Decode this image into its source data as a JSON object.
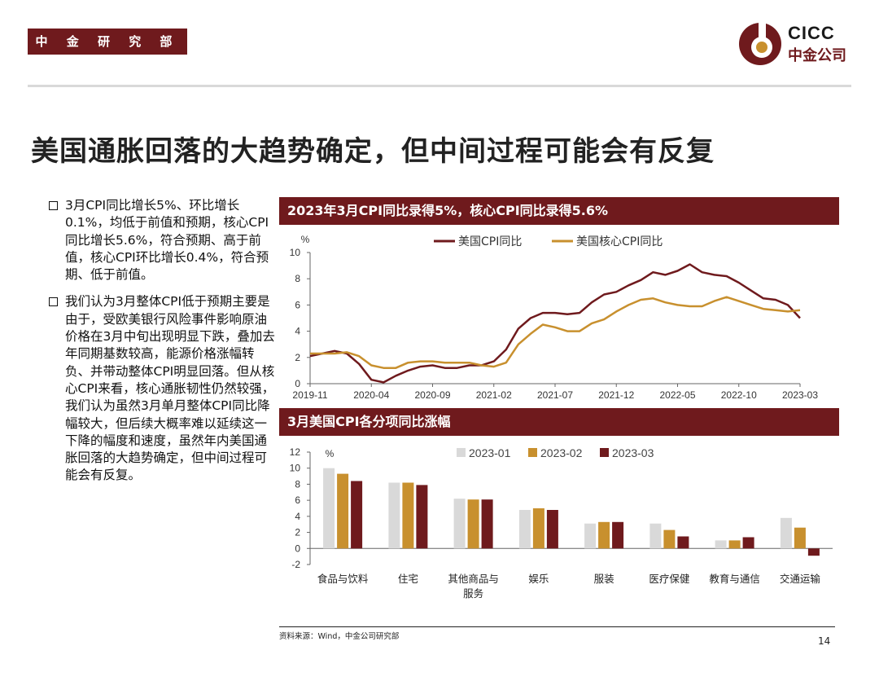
{
  "header": {
    "badge": "中 金 研 究 部",
    "logo_en": "CICC",
    "logo_cn": "中金公司"
  },
  "title": "美国通胀回落的大趋势确定，但中间过程可能会有反复",
  "bullets": [
    "3月CPI同比增长5%、环比增长0.1%，均低于前值和预期，核心CPI同比增长5.6%，符合预期、高于前值，核心CPI环比增长0.4%，符合预期、低于前值。",
    "我们认为3月整体CPI低于预期主要是由于，受欧美银行风险事件影响原油价格在3月中旬出现明显下跌，叠加去年同期基数较高，能源价格涨幅转负、并带动整体CPI明显回落。但从核心CPI来看，核心通胀韧性仍然较强，我们认为虽然3月单月整体CPI同比降幅较大，但后续大概率难以延续这一下降的幅度和速度，虽然年内美国通胀回落的大趋势确定，但中间过程可能会有反复。"
  ],
  "footer": {
    "source": "资料来源：Wind，中金公司研究部",
    "page": "14"
  },
  "colors": {
    "brand": "#6f1a1d",
    "gold": "#c8902e",
    "grey": "#d9d9d9"
  },
  "chart_data": [
    {
      "type": "line",
      "title": "2023年3月CPI同比录得5%，核心CPI同比录得5.6%",
      "ylabel": "%",
      "ylim": [
        0,
        10
      ],
      "yticks": [
        "0",
        "2",
        "4",
        "6",
        "8",
        "10"
      ],
      "xtick_labels": [
        "2019-11",
        "2020-04",
        "2020-09",
        "2021-02",
        "2021-07",
        "2021-12",
        "2022-05",
        "2022-10",
        "2023-03"
      ],
      "x": [
        "2019-11",
        "2019-12",
        "2020-01",
        "2020-02",
        "2020-03",
        "2020-04",
        "2020-05",
        "2020-06",
        "2020-07",
        "2020-08",
        "2020-09",
        "2020-10",
        "2020-11",
        "2020-12",
        "2021-01",
        "2021-02",
        "2021-03",
        "2021-04",
        "2021-05",
        "2021-06",
        "2021-07",
        "2021-08",
        "2021-09",
        "2021-10",
        "2021-11",
        "2021-12",
        "2022-01",
        "2022-02",
        "2022-03",
        "2022-04",
        "2022-05",
        "2022-06",
        "2022-07",
        "2022-08",
        "2022-09",
        "2022-10",
        "2022-11",
        "2022-12",
        "2023-01",
        "2023-02",
        "2023-03"
      ],
      "legend_position": "top",
      "series": [
        {
          "name": "美国CPI同比",
          "color": "#6f1a1d",
          "values": [
            2.1,
            2.3,
            2.5,
            2.3,
            1.5,
            0.3,
            0.1,
            0.6,
            1.0,
            1.3,
            1.4,
            1.2,
            1.2,
            1.4,
            1.4,
            1.7,
            2.6,
            4.2,
            5.0,
            5.4,
            5.4,
            5.3,
            5.4,
            6.2,
            6.8,
            7.0,
            7.5,
            7.9,
            8.5,
            8.3,
            8.6,
            9.1,
            8.5,
            8.3,
            8.2,
            7.7,
            7.1,
            6.5,
            6.4,
            6.0,
            5.0
          ]
        },
        {
          "name": "美国核心CPI同比",
          "color": "#c8902e",
          "values": [
            2.3,
            2.3,
            2.3,
            2.4,
            2.1,
            1.4,
            1.2,
            1.2,
            1.6,
            1.7,
            1.7,
            1.6,
            1.6,
            1.6,
            1.4,
            1.3,
            1.6,
            3.0,
            3.8,
            4.5,
            4.3,
            4.0,
            4.0,
            4.6,
            4.9,
            5.5,
            6.0,
            6.4,
            6.5,
            6.2,
            6.0,
            5.9,
            5.9,
            6.3,
            6.6,
            6.3,
            6.0,
            5.7,
            5.6,
            5.5,
            5.6
          ]
        }
      ]
    },
    {
      "type": "bar",
      "title": "3月美国CPI各分项同比涨幅",
      "ylabel": "%",
      "ylim": [
        -2,
        12
      ],
      "yticks": [
        "-2",
        "0",
        "2",
        "4",
        "6",
        "8",
        "10",
        "12"
      ],
      "legend_position": "top",
      "categories": [
        "食品与饮料",
        "住宅",
        "其他商品与服务",
        "娱乐",
        "服装",
        "医疗保健",
        "教育与通信",
        "交通运输"
      ],
      "category_lines": [
        [
          "食品与饮料"
        ],
        [
          "住宅"
        ],
        [
          "其他商品与",
          "服务"
        ],
        [
          "娱乐"
        ],
        [
          "服装"
        ],
        [
          "医疗保健"
        ],
        [
          "教育与通信"
        ],
        [
          "交通运输"
        ]
      ],
      "series": [
        {
          "name": "2023-01",
          "color": "#d9d9d9",
          "values": [
            10.0,
            8.2,
            6.2,
            4.8,
            3.1,
            3.1,
            1.0,
            3.8
          ]
        },
        {
          "name": "2023-02",
          "color": "#c8902e",
          "values": [
            9.3,
            8.2,
            6.1,
            5.0,
            3.3,
            2.3,
            1.0,
            2.6
          ]
        },
        {
          "name": "2023-03",
          "color": "#6f1a1d",
          "values": [
            8.4,
            7.9,
            6.1,
            4.8,
            3.3,
            1.5,
            1.4,
            -0.9
          ]
        }
      ]
    }
  ]
}
